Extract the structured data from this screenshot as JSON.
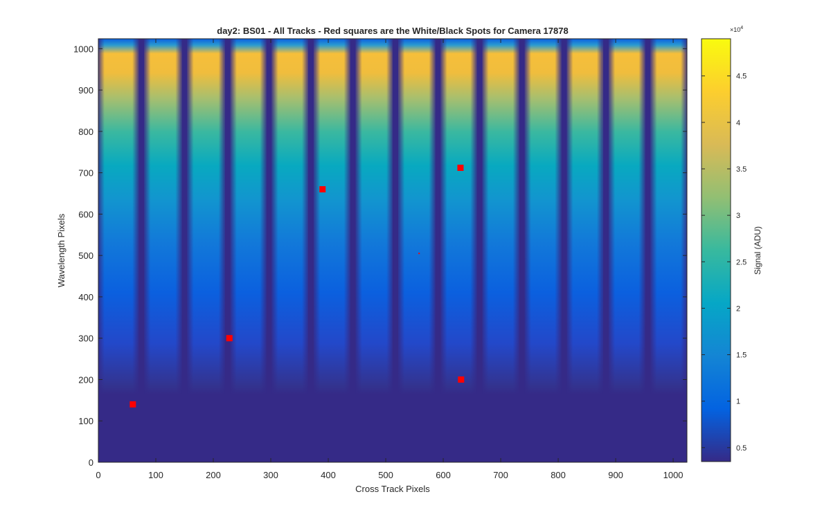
{
  "chart_data": {
    "type": "heatmap",
    "title": "day2: BS01 - All Tracks - Red squares are the  White/Black Spots for Camera 17878",
    "xlabel": "Cross Track Pixels",
    "ylabel": "Wavelength Pixels",
    "xlim": [
      0,
      1024
    ],
    "ylim": [
      0,
      1024
    ],
    "xticks": [
      0,
      100,
      200,
      300,
      400,
      500,
      600,
      700,
      800,
      900,
      1000
    ],
    "yticks": [
      0,
      100,
      200,
      300,
      400,
      500,
      600,
      700,
      800,
      900,
      1000
    ],
    "grid": false,
    "colorbar": {
      "label": "Signal (ADU)",
      "exponent_label": "×10",
      "exponent": "4",
      "range": [
        0.35,
        4.9
      ],
      "ticks": [
        "0.5",
        "1",
        "1.5",
        "2",
        "2.5",
        "3",
        "3.5",
        "4",
        "4.5"
      ],
      "tick_values": [
        0.5,
        1,
        1.5,
        2,
        2.5,
        3,
        3.5,
        4,
        4.5
      ],
      "colormap": [
        "#352a87",
        "#0363e1",
        "#1485d4",
        "#06a7c6",
        "#38b99e",
        "#92bf73",
        "#d9ba56",
        "#fcce2e",
        "#f9fb0e"
      ]
    },
    "tracks": {
      "count": 14,
      "gap_centers": [
        75,
        150,
        225,
        297,
        370,
        443,
        517,
        591,
        663,
        737,
        810,
        883,
        956
      ],
      "gap_width": 10,
      "dark_below": 165,
      "peak_wavelength": 950
    },
    "spots": {
      "color": "#ff0000",
      "points": [
        {
          "x": 60,
          "y": 140
        },
        {
          "x": 228,
          "y": 300
        },
        {
          "x": 390,
          "y": 660
        },
        {
          "x": 630,
          "y": 712
        },
        {
          "x": 631,
          "y": 200
        },
        {
          "x": 558,
          "y": 505
        }
      ]
    }
  }
}
